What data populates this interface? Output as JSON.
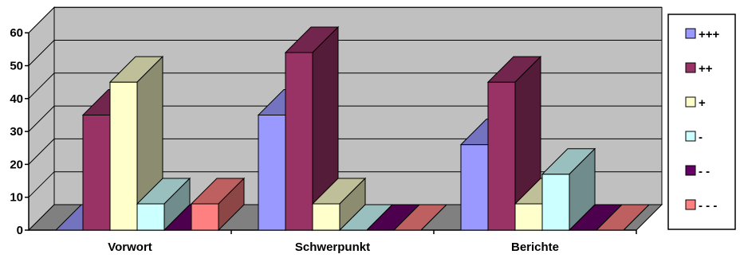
{
  "chart_data": {
    "type": "bar",
    "categories": [
      "Vorwort",
      "Schwerpunkt",
      "Berichte"
    ],
    "series": [
      {
        "name": "+++",
        "values": [
          0,
          35,
          26
        ],
        "color": "#9999ff"
      },
      {
        "name": "++",
        "values": [
          35,
          54,
          45
        ],
        "color": "#993366"
      },
      {
        "name": "+",
        "values": [
          45,
          8,
          8
        ],
        "color": "#ffffcc"
      },
      {
        "name": "-",
        "values": [
          8,
          0,
          17
        ],
        "color": "#ccffff"
      },
      {
        "name": "- -",
        "values": [
          0,
          0,
          0
        ],
        "color": "#660066"
      },
      {
        "name": "- - -",
        "values": [
          8,
          0,
          0
        ],
        "color": "#ff8080"
      }
    ],
    "yticks": [
      "0",
      "10",
      "20",
      "30",
      "40",
      "50",
      "60"
    ],
    "ylim": [
      0,
      60
    ],
    "grid": true,
    "three_d": true,
    "legend": "right"
  }
}
